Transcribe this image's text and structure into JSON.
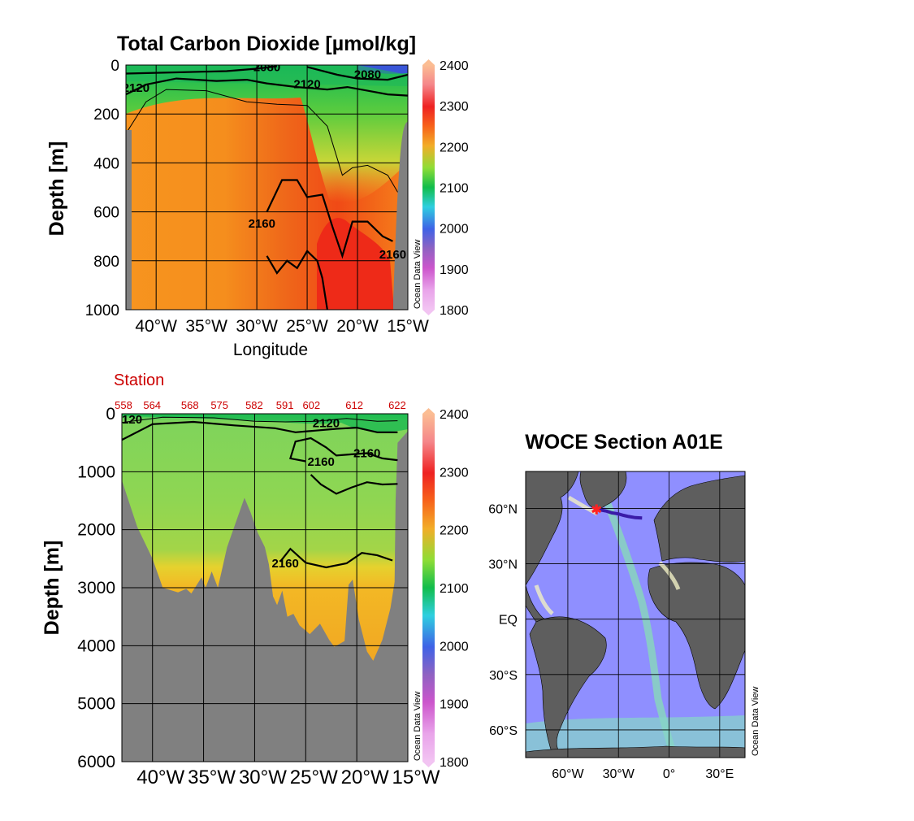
{
  "colors": {
    "land": "#808080",
    "contour": "#000000",
    "station_text": "#cc0000",
    "map_ocean": "#8f8fff",
    "map_land": "#5e5e5e",
    "map_shelf": "#f0efc4",
    "track": "#3a1ba8",
    "start_marker": "#ff2222"
  },
  "icons": {
    "start_marker": "asterisk-icon"
  },
  "chart_data": [
    {
      "type": "heatmap",
      "title": "Total Carbon Dioxide [µmol/kg]",
      "xlabel": "Longitude",
      "ylabel": "Depth [m]",
      "xlim": [
        -43,
        -15
      ],
      "ylim": [
        1000,
        0
      ],
      "x_ticks": [
        -40,
        -35,
        -30,
        -25,
        -20,
        -15
      ],
      "x_tick_labels": [
        "40°W",
        "35°W",
        "30°W",
        "25°W",
        "20°W",
        "15°W"
      ],
      "y_ticks": [
        0,
        200,
        400,
        600,
        800,
        1000
      ],
      "y_tick_labels": [
        "0",
        "200",
        "400",
        "600",
        "800",
        "1000"
      ],
      "grid": true,
      "colorbar": {
        "label": "Ocean Data View",
        "range": [
          1800,
          2400
        ],
        "ticks": [
          2400,
          2300,
          2200,
          2100,
          2000,
          1900,
          1800
        ]
      },
      "contour_labels": [
        {
          "text": "2120",
          "x": -42,
          "y": 110
        },
        {
          "text": "2080",
          "x": -29,
          "y": 25
        },
        {
          "text": "2120",
          "x": -25,
          "y": 95
        },
        {
          "text": "2080",
          "x": -19,
          "y": 55
        },
        {
          "text": "2160",
          "x": -29.5,
          "y": 665
        },
        {
          "text": "2160",
          "x": -16.5,
          "y": 790
        }
      ],
      "contours": [
        {
          "level": 2080,
          "points": [
            [
              -43,
              35
            ],
            [
              -38,
              30
            ],
            [
              -33,
              25
            ],
            [
              -30,
              15
            ],
            [
              -28,
              5
            ]
          ]
        },
        {
          "level": 2080,
          "points": [
            [
              -25,
              8
            ],
            [
              -22,
              40
            ],
            [
              -20,
              55
            ],
            [
              -17,
              60
            ],
            [
              -15,
              40
            ]
          ]
        },
        {
          "level": 2120,
          "points": [
            [
              -43,
              120
            ],
            [
              -41,
              80
            ],
            [
              -38,
              55
            ],
            [
              -34,
              65
            ],
            [
              -31,
              60
            ],
            [
              -29,
              75
            ],
            [
              -26,
              90
            ],
            [
              -23,
              100
            ],
            [
              -21,
              90
            ],
            [
              -19,
              105
            ],
            [
              -17,
              120
            ],
            [
              -15,
              125
            ]
          ]
        },
        {
          "level": 2140,
          "points": [
            [
              -43,
              280
            ],
            [
              -41,
              150
            ],
            [
              -39,
              100
            ],
            [
              -35,
              105
            ],
            [
              -31,
              150
            ],
            [
              -28,
              160
            ],
            [
              -25,
              165
            ],
            [
              -23,
              250
            ],
            [
              -21.5,
              450
            ],
            [
              -20.5,
              420
            ],
            [
              -19,
              410
            ],
            [
              -17,
              450
            ],
            [
              -16,
              520
            ]
          ]
        },
        {
          "level": 2160,
          "points": [
            [
              -29,
              600
            ],
            [
              -27.5,
              470
            ],
            [
              -26,
              470
            ],
            [
              -25,
              540
            ],
            [
              -23.5,
              530
            ],
            [
              -22.5,
              660
            ],
            [
              -21.5,
              780
            ],
            [
              -20.5,
              640
            ],
            [
              -19,
              640
            ],
            [
              -17.5,
              700
            ],
            [
              -16.5,
              720
            ]
          ]
        },
        {
          "level": 2160,
          "points": [
            [
              -29,
              780
            ],
            [
              -28,
              850
            ],
            [
              -27,
              800
            ],
            [
              -26,
              830
            ],
            [
              -25,
              760
            ],
            [
              -24,
              800
            ],
            [
              -23.5,
              870
            ],
            [
              -23,
              1000
            ]
          ]
        }
      ]
    },
    {
      "type": "heatmap",
      "title": "",
      "xlabel": "",
      "ylabel": "Depth [m]",
      "xlim": [
        -43,
        -15
      ],
      "ylim": [
        6000,
        0
      ],
      "x_ticks": [
        -40,
        -35,
        -30,
        -25,
        -20,
        -15
      ],
      "x_tick_labels": [
        "40°W",
        "35°W",
        "30°W",
        "25°W",
        "20°W",
        "15°W"
      ],
      "y_ticks": [
        0,
        1000,
        2000,
        3000,
        4000,
        5000,
        6000
      ],
      "y_tick_labels": [
        "0",
        "1000",
        "2000",
        "3000",
        "4000",
        "5000",
        "6000"
      ],
      "grid": true,
      "station_title": "Station",
      "stations": [
        {
          "label": "558",
          "x": -43
        },
        {
          "label": "564",
          "x": -40.2
        },
        {
          "label": "568",
          "x": -36.5
        },
        {
          "label": "575",
          "x": -33.6
        },
        {
          "label": "582",
          "x": -30.2
        },
        {
          "label": "591",
          "x": -27.2
        },
        {
          "label": "602",
          "x": -24.6
        },
        {
          "label": "612",
          "x": -20.4
        },
        {
          "label": "622",
          "x": -16.2
        }
      ],
      "colorbar": {
        "label": "Ocean Data View",
        "range": [
          1800,
          2400
        ],
        "ticks": [
          2400,
          2300,
          2200,
          2100,
          2000,
          1900,
          1800
        ]
      },
      "contour_labels": [
        {
          "text": "120",
          "x": -42,
          "y": 170
        },
        {
          "text": "2120",
          "x": -23,
          "y": 230
        },
        {
          "text": "2160",
          "x": -23.5,
          "y": 900
        },
        {
          "text": "2160",
          "x": -19,
          "y": 750
        },
        {
          "text": "2160",
          "x": -27,
          "y": 2650
        }
      ],
      "contours": [
        {
          "level": 2120,
          "points": [
            [
              -43,
              450
            ],
            [
              -40,
              180
            ],
            [
              -36,
              140
            ],
            [
              -32,
              200
            ],
            [
              -28,
              250
            ],
            [
              -26,
              320
            ],
            [
              -24,
              290
            ],
            [
              -22,
              260
            ],
            [
              -20,
              240
            ],
            [
              -18,
              320
            ],
            [
              -16,
              320
            ]
          ]
        },
        {
          "level": 2140,
          "points": [
            [
              -43,
              150
            ],
            [
              -39,
              60
            ],
            [
              -34,
              70
            ],
            [
              -30,
              130
            ],
            [
              -27,
              140
            ],
            [
              -24,
              130
            ],
            [
              -21,
              80
            ],
            [
              -18,
              130
            ],
            [
              -16,
              120
            ]
          ]
        },
        {
          "level": 2160,
          "points": [
            [
              -25,
              820
            ],
            [
              -26.5,
              770
            ],
            [
              -26,
              480
            ],
            [
              -24.5,
              420
            ],
            [
              -23,
              580
            ],
            [
              -22,
              720
            ],
            [
              -20.5,
              700
            ],
            [
              -19,
              680
            ],
            [
              -17.5,
              770
            ],
            [
              -16,
              800
            ]
          ]
        },
        {
          "level": 2160,
          "points": [
            [
              -24.5,
              1050
            ],
            [
              -23.5,
              1220
            ],
            [
              -22,
              1380
            ],
            [
              -20.5,
              1270
            ],
            [
              -19,
              1180
            ],
            [
              -17.5,
              1220
            ],
            [
              -16,
              1210
            ]
          ]
        },
        {
          "level": 2160,
          "points": [
            [
              -27.5,
              2550
            ],
            [
              -26.5,
              2330
            ],
            [
              -25,
              2570
            ],
            [
              -23,
              2650
            ],
            [
              -21,
              2580
            ],
            [
              -19.5,
              2400
            ],
            [
              -18,
              2440
            ],
            [
              -16.5,
              2530
            ]
          ]
        }
      ],
      "bottom": [
        [
          -43,
          1150
        ],
        [
          -41.5,
          1950
        ],
        [
          -40,
          2500
        ],
        [
          -39,
          3000
        ],
        [
          -37.5,
          3080
        ],
        [
          -36.7,
          3020
        ],
        [
          -36.2,
          3100
        ],
        [
          -35.2,
          2820
        ],
        [
          -34.8,
          3000
        ],
        [
          -34.2,
          2720
        ],
        [
          -33.6,
          3000
        ],
        [
          -32.7,
          2300
        ],
        [
          -32,
          1950
        ],
        [
          -31,
          1450
        ],
        [
          -30.4,
          1700
        ],
        [
          -29.7,
          2050
        ],
        [
          -29,
          2300
        ],
        [
          -28.6,
          2600
        ],
        [
          -28.2,
          3150
        ],
        [
          -27.8,
          3300
        ],
        [
          -27.3,
          3050
        ],
        [
          -26.8,
          3500
        ],
        [
          -26.2,
          3450
        ],
        [
          -25.6,
          3650
        ],
        [
          -24.6,
          3800
        ],
        [
          -23.6,
          3620
        ],
        [
          -22.7,
          3900
        ],
        [
          -22.2,
          4020
        ],
        [
          -21.2,
          3920
        ],
        [
          -20.8,
          2950
        ],
        [
          -20.4,
          2860
        ],
        [
          -19.8,
          3550
        ],
        [
          -19,
          4100
        ],
        [
          -18.4,
          4260
        ],
        [
          -17.5,
          3900
        ],
        [
          -16.7,
          3350
        ],
        [
          -16.3,
          2900
        ],
        [
          -16.2,
          1500
        ],
        [
          -16.0,
          500
        ],
        [
          -15,
          300
        ]
      ]
    },
    {
      "type": "map",
      "title": "WOCE Section A01E",
      "colorbar_label": "Ocean Data View",
      "xlim": [
        -85,
        45
      ],
      "ylim": [
        -75,
        80
      ],
      "x_ticks": [
        -60,
        -30,
        0,
        30
      ],
      "x_tick_labels": [
        "60°W",
        "30°W",
        "0°",
        "30°E"
      ],
      "y_ticks": [
        60,
        30,
        0,
        -30,
        -60
      ],
      "y_tick_labels": [
        "60°N",
        "30°N",
        "EQ",
        "30°S",
        "60°S"
      ],
      "grid": true,
      "track": [
        [
          -43,
          59.5
        ],
        [
          -40,
          59
        ],
        [
          -37,
          58.5
        ],
        [
          -34,
          57.6
        ],
        [
          -30,
          57
        ],
        [
          -27,
          56.2
        ],
        [
          -24,
          55.6
        ],
        [
          -20,
          55
        ],
        [
          -16,
          54.8
        ]
      ]
    }
  ]
}
